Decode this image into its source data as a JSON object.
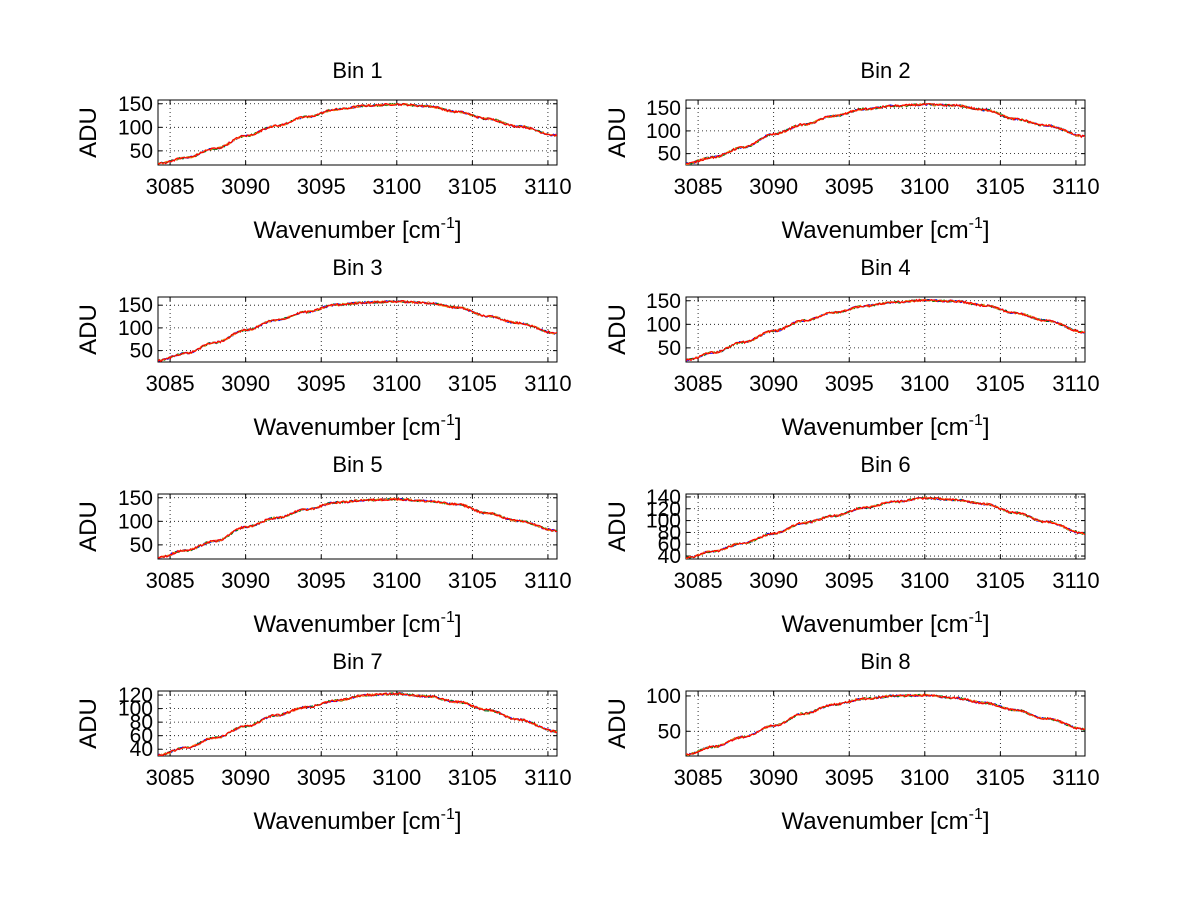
{
  "figure": {
    "background": "#ffffff",
    "grid": "on",
    "grid_style": "dotted",
    "line_colors": [
      "#0000ff",
      "#008000",
      "#ff7f0e",
      "#ff0000"
    ]
  },
  "chart_data": [
    {
      "type": "line",
      "title": "Bin 1",
      "xlabel": "Wavenumber [cm",
      "xlabel_sup": "-1",
      "xlabel_end": "]",
      "ylabel": "ADU",
      "xlim": [
        3084.2,
        3110.6
      ],
      "ylim": [
        20,
        158
      ],
      "xticks": [
        "3085",
        "3090",
        "3095",
        "3100",
        "3105",
        "3110"
      ],
      "yticks": [
        "50",
        "100",
        "150"
      ],
      "x": [
        3084.2,
        3086,
        3088,
        3090,
        3092,
        3094,
        3096,
        3098,
        3100,
        3102,
        3104,
        3106,
        3108,
        3110.6
      ],
      "y": [
        23,
        35,
        55,
        82,
        103,
        122,
        138,
        146,
        149,
        145,
        133,
        118,
        102,
        83
      ]
    },
    {
      "type": "line",
      "title": "Bin 2",
      "xlabel": "Wavenumber [cm",
      "xlabel_sup": "-1",
      "xlabel_end": "]",
      "ylabel": "ADU",
      "xlim": [
        3084.2,
        3110.6
      ],
      "ylim": [
        25,
        168
      ],
      "xticks": [
        "3085",
        "3090",
        "3095",
        "3100",
        "3105",
        "3110"
      ],
      "yticks": [
        "50",
        "100",
        "150"
      ],
      "x": [
        3084.2,
        3086,
        3088,
        3090,
        3092,
        3094,
        3096,
        3098,
        3100,
        3102,
        3104,
        3106,
        3108,
        3110.6
      ],
      "y": [
        28,
        42,
        64,
        93,
        114,
        133,
        148,
        155,
        158,
        156,
        146,
        126,
        112,
        88
      ]
    },
    {
      "type": "line",
      "title": "Bin 3",
      "xlabel": "Wavenumber [cm",
      "xlabel_sup": "-1",
      "xlabel_end": "]",
      "ylabel": "ADU",
      "xlim": [
        3084.2,
        3110.6
      ],
      "ylim": [
        25,
        168
      ],
      "xticks": [
        "3085",
        "3090",
        "3095",
        "3100",
        "3105",
        "3110"
      ],
      "yticks": [
        "50",
        "100",
        "150"
      ],
      "x": [
        3084.2,
        3086,
        3088,
        3090,
        3092,
        3094,
        3096,
        3098,
        3100,
        3102,
        3104,
        3106,
        3108,
        3110.6
      ],
      "y": [
        28,
        44,
        68,
        95,
        117,
        135,
        151,
        156,
        158,
        155,
        145,
        126,
        111,
        88
      ]
    },
    {
      "type": "line",
      "title": "Bin 4",
      "xlabel": "Wavenumber [cm",
      "xlabel_sup": "-1",
      "xlabel_end": "]",
      "ylabel": "ADU",
      "xlim": [
        3084.2,
        3110.6
      ],
      "ylim": [
        20,
        158
      ],
      "xticks": [
        "3085",
        "3090",
        "3095",
        "3100",
        "3105",
        "3110"
      ],
      "yticks": [
        "50",
        "100",
        "150"
      ],
      "x": [
        3084.2,
        3086,
        3088,
        3090,
        3092,
        3094,
        3096,
        3098,
        3100,
        3102,
        3104,
        3106,
        3108,
        3110.6
      ],
      "y": [
        24,
        40,
        62,
        86,
        108,
        125,
        139,
        147,
        151,
        149,
        140,
        124,
        108,
        83
      ]
    },
    {
      "type": "line",
      "title": "Bin 5",
      "xlabel": "Wavenumber [cm",
      "xlabel_sup": "-1",
      "xlabel_end": "]",
      "ylabel": "ADU",
      "xlim": [
        3084.2,
        3110.6
      ],
      "ylim": [
        20,
        158
      ],
      "xticks": [
        "3085",
        "3090",
        "3095",
        "3100",
        "3105",
        "3110"
      ],
      "yticks": [
        "50",
        "100",
        "150"
      ],
      "x": [
        3084.2,
        3086,
        3088,
        3090,
        3092,
        3094,
        3096,
        3098,
        3100,
        3102,
        3104,
        3106,
        3108,
        3110.6
      ],
      "y": [
        23,
        38,
        58,
        88,
        107,
        125,
        140,
        145,
        147,
        143,
        136,
        117,
        101,
        80
      ]
    },
    {
      "type": "line",
      "title": "Bin 6",
      "xlabel": "Wavenumber [cm",
      "xlabel_sup": "-1",
      "xlabel_end": "]",
      "ylabel": "ADU",
      "xlim": [
        3084.2,
        3110.6
      ],
      "ylim": [
        35,
        145
      ],
      "xticks": [
        "3085",
        "3090",
        "3095",
        "3100",
        "3105",
        "3110"
      ],
      "yticks": [
        "40",
        "60",
        "80",
        "100",
        "120",
        "140"
      ],
      "x": [
        3084.2,
        3086,
        3088,
        3090,
        3092,
        3094,
        3096,
        3098,
        3100,
        3102,
        3104,
        3106,
        3108,
        3110.6
      ],
      "y": [
        37,
        48,
        62,
        78,
        96,
        108,
        122,
        132,
        138,
        135,
        128,
        113,
        98,
        78
      ]
    },
    {
      "type": "line",
      "title": "Bin 7",
      "xlabel": "Wavenumber [cm",
      "xlabel_sup": "-1",
      "xlabel_end": "]",
      "ylabel": "ADU",
      "xlim": [
        3084.2,
        3110.6
      ],
      "ylim": [
        30,
        126
      ],
      "xticks": [
        "3085",
        "3090",
        "3095",
        "3100",
        "3105",
        "3110"
      ],
      "yticks": [
        "40",
        "60",
        "80",
        "100",
        "120"
      ],
      "x": [
        3084.2,
        3086,
        3088,
        3090,
        3092,
        3094,
        3096,
        3098,
        3100,
        3102,
        3104,
        3106,
        3108,
        3110.6
      ],
      "y": [
        31,
        42,
        57,
        74,
        90,
        102,
        112,
        120,
        122,
        118,
        110,
        98,
        84,
        66
      ]
    },
    {
      "type": "line",
      "title": "Bin 8",
      "xlabel": "Wavenumber [cm",
      "xlabel_sup": "-1",
      "xlabel_end": "]",
      "ylabel": "ADU",
      "xlim": [
        3084.2,
        3110.6
      ],
      "ylim": [
        15,
        107
      ],
      "xticks": [
        "3085",
        "3090",
        "3095",
        "3100",
        "3105",
        "3110"
      ],
      "yticks": [
        "50",
        "100"
      ],
      "x": [
        3084.2,
        3086,
        3088,
        3090,
        3092,
        3094,
        3096,
        3098,
        3100,
        3102,
        3104,
        3106,
        3108,
        3110.6
      ],
      "y": [
        17,
        28,
        42,
        58,
        75,
        88,
        96,
        100,
        101,
        97,
        90,
        80,
        68,
        53
      ]
    }
  ]
}
